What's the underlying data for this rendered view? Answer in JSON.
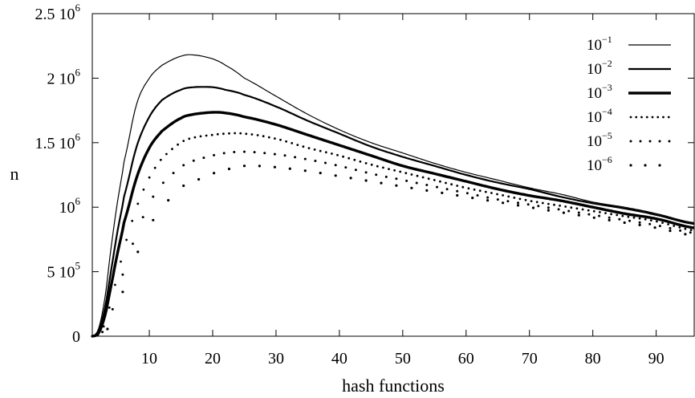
{
  "chart_data": {
    "type": "line",
    "xlabel": "hash functions",
    "ylabel": "n",
    "xlim": [
      1,
      96
    ],
    "ylim": [
      0,
      2500000
    ],
    "x_ticks": [
      {
        "value": 10,
        "label": "10"
      },
      {
        "value": 20,
        "label": "20"
      },
      {
        "value": 30,
        "label": "30"
      },
      {
        "value": 40,
        "label": "40"
      },
      {
        "value": 50,
        "label": "50"
      },
      {
        "value": 60,
        "label": "60"
      },
      {
        "value": 70,
        "label": "70"
      },
      {
        "value": 80,
        "label": "80"
      },
      {
        "value": 90,
        "label": "90"
      }
    ],
    "y_ticks": [
      {
        "value": 0,
        "base": "0",
        "exp": ""
      },
      {
        "value": 500000,
        "base": "5 10",
        "exp": "5"
      },
      {
        "value": 1000000,
        "base": "10",
        "exp": "6"
      },
      {
        "value": 1500000,
        "base": "1.5 10",
        "exp": "6"
      },
      {
        "value": 2000000,
        "base": "2 10",
        "exp": "6"
      },
      {
        "value": 2500000,
        "base": "2.5 10",
        "exp": "6"
      }
    ],
    "grid": false,
    "legend_position": "top-right",
    "x": [
      1,
      2,
      3,
      4,
      5,
      6,
      8,
      10,
      12,
      15,
      17,
      20,
      22,
      25,
      30,
      35,
      40,
      45,
      50,
      55,
      60,
      65,
      70,
      75,
      80,
      85,
      90,
      96
    ],
    "series": [
      {
        "name_base": "10",
        "name_exp": "−1",
        "style": "line-thin",
        "values": [
          0,
          60000,
          300000,
          700000,
          1050000,
          1350000,
          1800000,
          2000000,
          2100000,
          2170000,
          2180000,
          2150000,
          2100000,
          2000000,
          1860000,
          1720000,
          1600000,
          1500000,
          1420000,
          1340000,
          1270000,
          1210000,
          1150000,
          1100000,
          1040000,
          1000000,
          950000,
          880000
        ]
      },
      {
        "name_base": "10",
        "name_exp": "−2",
        "style": "line-medium",
        "values": [
          0,
          40000,
          220000,
          520000,
          820000,
          1080000,
          1470000,
          1700000,
          1830000,
          1910000,
          1930000,
          1930000,
          1910000,
          1870000,
          1780000,
          1670000,
          1570000,
          1470000,
          1390000,
          1320000,
          1250000,
          1190000,
          1140000,
          1080000,
          1030000,
          990000,
          940000,
          870000
        ]
      },
      {
        "name_base": "10",
        "name_exp": "−3",
        "style": "line-thick",
        "values": [
          0,
          25000,
          160000,
          400000,
          650000,
          880000,
          1230000,
          1460000,
          1590000,
          1690000,
          1720000,
          1735000,
          1730000,
          1700000,
          1640000,
          1560000,
          1480000,
          1400000,
          1320000,
          1260000,
          1200000,
          1140000,
          1090000,
          1050000,
          1000000,
          950000,
          910000,
          840000
        ]
      },
      {
        "name_base": "10",
        "name_exp": "−4",
        "style": "dots-dense",
        "values": [
          0,
          15000,
          100000,
          280000,
          480000,
          690000,
          1000000,
          1230000,
          1380000,
          1500000,
          1540000,
          1560000,
          1570000,
          1570000,
          1530000,
          1460000,
          1400000,
          1330000,
          1270000,
          1210000,
          1150000,
          1100000,
          1050000,
          1010000,
          970000,
          930000,
          890000,
          820000
        ]
      },
      {
        "name_base": "10",
        "name_exp": "−5",
        "style": "dots-medium",
        "values": [
          0,
          8000,
          60000,
          180000,
          340000,
          520000,
          800000,
          1030000,
          1180000,
          1310000,
          1360000,
          1400000,
          1420000,
          1430000,
          1410000,
          1370000,
          1320000,
          1260000,
          1210000,
          1160000,
          1110000,
          1060000,
          1020000,
          980000,
          940000,
          900000,
          860000,
          800000
        ]
      },
      {
        "name_base": "10",
        "name_exp": "−6",
        "style": "dots-sparse",
        "values": [
          0,
          4000,
          30000,
          110000,
          230000,
          380000,
          630000,
          850000,
          1000000,
          1150000,
          1200000,
          1260000,
          1290000,
          1320000,
          1310000,
          1280000,
          1240000,
          1200000,
          1160000,
          1120000,
          1080000,
          1040000,
          1000000,
          960000,
          920000,
          880000,
          840000,
          780000
        ]
      }
    ]
  }
}
